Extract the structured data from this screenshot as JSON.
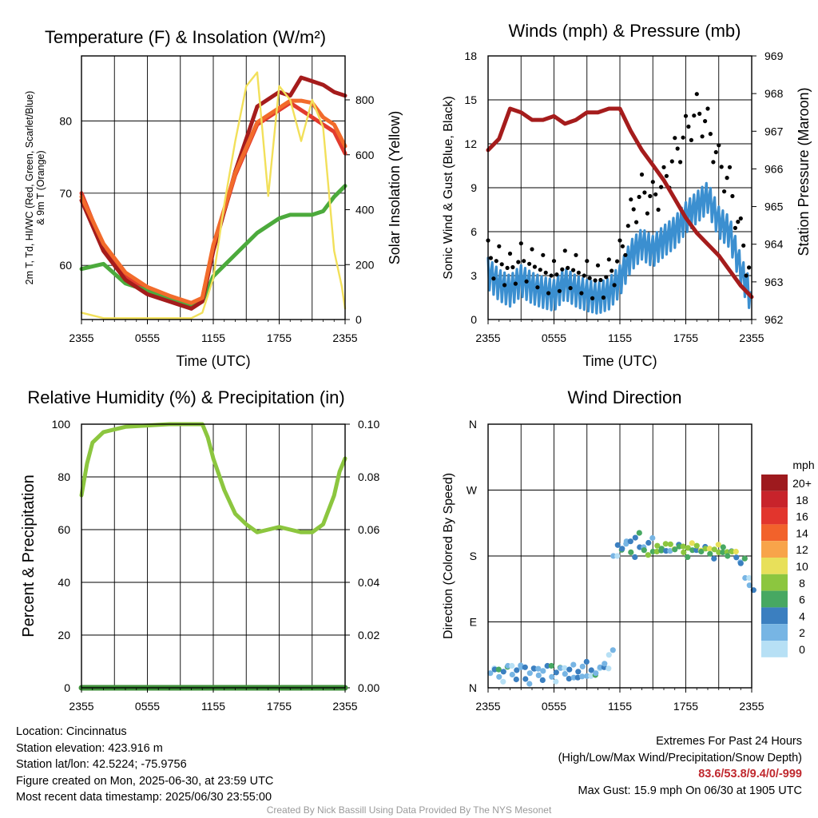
{
  "chart_data": [
    {
      "type": "line",
      "title": "Temperature (F) & Insolation (W/m²)",
      "xlabel": "Time (UTC)",
      "ylabel": "2m T, Td, HI/WC (Red, Green, Scarlet/Blue) & 9m T (Orange)",
      "ylabel_line1": "2m T, Td, HI/WC (Red, Green, Scarlet/Blue)",
      "ylabel_line2": "& 9m T (Orange)",
      "y2label": "Solar Insolation (Yellow)",
      "xticks": [
        "2355",
        "0555",
        "1155",
        "1755",
        "2355"
      ],
      "yticks": [
        60,
        70,
        80
      ],
      "y2ticks": [
        0,
        200,
        400,
        600,
        800
      ],
      "ylim": [
        52.5,
        89
      ],
      "y2lim": [
        0,
        960
      ],
      "x_hours": [
        0,
        2,
        4,
        6,
        8,
        10,
        11,
        12,
        14,
        16,
        18,
        19,
        20,
        21,
        22,
        23,
        24
      ],
      "series": [
        {
          "name": "2m T",
          "color": "#e23b2e",
          "values": [
            70,
            62.5,
            58.5,
            56.5,
            55.5,
            54.5,
            55.5,
            62.5,
            72.5,
            79.5,
            81.5,
            82.5,
            81.5,
            80.5,
            79.5,
            78.5,
            75.5
          ]
        },
        {
          "name": "Td",
          "color": "#4caa3c",
          "values": [
            59.5,
            60.2,
            57.5,
            56.5,
            55.5,
            54.5,
            55,
            58.5,
            61.5,
            64.5,
            66.5,
            67,
            67,
            67,
            67.5,
            69.5,
            71
          ]
        },
        {
          "name": "HI/WC",
          "color": "#a51c1c",
          "values": [
            69,
            62,
            58,
            56,
            55,
            54,
            55,
            62,
            73,
            82,
            84,
            83.5,
            86,
            85.5,
            85,
            84,
            83.5
          ]
        },
        {
          "name": "9m T",
          "color": "#f26b2b",
          "values": [
            69.5,
            63,
            59,
            57,
            55.8,
            54.8,
            55.5,
            62.8,
            72.8,
            79.8,
            81.8,
            82.8,
            82.8,
            82.5,
            80.5,
            79.5,
            76.5
          ]
        },
        {
          "name": "Solar Insolation",
          "color": "#f2e05a",
          "axis": "y2",
          "x": [
            0,
            2,
            4,
            6,
            8,
            10,
            11,
            12,
            13,
            14,
            15,
            16,
            17,
            18,
            19,
            20,
            21,
            22,
            23,
            23.7,
            24
          ],
          "values": [
            25,
            5,
            5,
            5,
            5,
            5,
            25,
            150,
            420,
            650,
            850,
            900,
            450,
            850,
            800,
            650,
            800,
            700,
            250,
            120,
            40
          ]
        }
      ]
    },
    {
      "type": "line",
      "title": "Winds (mph) & Pressure (mb)",
      "xlabel": "Time (UTC)",
      "ylabel": "Sonic Wind & Gust (Blue, Black)",
      "y2label": "Station Pressure (Maroon)",
      "xticks": [
        "2355",
        "0555",
        "1155",
        "1755",
        "2355"
      ],
      "yticks": [
        0,
        3,
        6,
        9,
        12,
        15,
        18
      ],
      "y2ticks": [
        962,
        963,
        964,
        965,
        966,
        967,
        968,
        969
      ],
      "ylim": [
        0,
        18
      ],
      "y2lim": [
        962,
        969
      ],
      "x_hours": [
        0,
        1,
        2,
        3,
        4,
        5,
        6,
        7,
        8,
        9,
        10,
        11,
        12,
        13,
        14,
        15,
        16,
        17,
        18,
        19,
        20,
        21,
        22,
        23,
        24
      ],
      "series": [
        {
          "name": "Sonic Wind",
          "color": "#3b8fd0",
          "values": [
            3,
            2.2,
            1.8,
            2.5,
            2,
            1.7,
            1.5,
            2.3,
            1.8,
            1.5,
            1.3,
            1.6,
            2.5,
            4.2,
            5,
            4.5,
            5.2,
            5.8,
            6.8,
            7.5,
            8.2,
            6.5,
            5.8,
            3.2,
            1.2
          ]
        },
        {
          "name": "Gust",
          "color": "#000000",
          "values": [
            4,
            3.6,
            3.1,
            3.8,
            3.4,
            3.0,
            2.6,
            3.3,
            3.0,
            2.6,
            2.3,
            2.7,
            4.0,
            6.8,
            8.5,
            8.0,
            9.0,
            11.0,
            12.5,
            14.0,
            13.0,
            10.5,
            9.0,
            5.5,
            2.5
          ]
        },
        {
          "name": "Station Pressure",
          "color": "#a51c1c",
          "axis": "y2",
          "values": [
            966.5,
            966.8,
            967.6,
            967.5,
            967.3,
            967.3,
            967.4,
            967.2,
            967.3,
            967.5,
            967.5,
            967.6,
            967.6,
            967.0,
            966.5,
            966.1,
            965.7,
            965.2,
            964.7,
            964.3,
            964.0,
            963.7,
            963.3,
            962.9,
            962.6
          ]
        }
      ]
    },
    {
      "type": "line",
      "title": "Relative Humidity (%) & Precipitation (in)",
      "ylabel": "Percent & Precipitation",
      "xticks": [
        "2355",
        "0555",
        "1155",
        "1755",
        "2355"
      ],
      "yticks": [
        0,
        20,
        40,
        60,
        80,
        100
      ],
      "y2ticks": [
        "0.00",
        "0.02",
        "0.04",
        "0.06",
        "0.08",
        "0.10"
      ],
      "ylim": [
        0,
        100
      ],
      "y2lim": [
        0,
        0.1
      ],
      "x_hours": [
        0,
        0.5,
        1,
        2,
        3,
        4,
        6,
        8,
        10,
        11,
        11.5,
        12,
        13,
        14,
        15,
        16,
        17,
        18,
        19,
        20,
        21,
        22,
        23,
        23.5,
        24
      ],
      "series": [
        {
          "name": "Relative Humidity",
          "color": "#8cc63f",
          "values": [
            73,
            85,
            93,
            97,
            98,
            99,
            99.5,
            100,
            100,
            100,
            95,
            87,
            75,
            66,
            62,
            59,
            60,
            61,
            60,
            59,
            59,
            62,
            73,
            82,
            87
          ]
        },
        {
          "name": "Precipitation",
          "color": "#3f8f3a",
          "axis": "y2",
          "values": [
            0,
            0,
            0,
            0,
            0,
            0,
            0,
            0,
            0,
            0,
            0,
            0,
            0,
            0,
            0,
            0,
            0,
            0,
            0,
            0,
            0,
            0,
            0,
            0,
            0
          ]
        }
      ]
    },
    {
      "type": "scatter",
      "title": "Wind Direction",
      "ylabel": "Direction (Colored By Speed)",
      "xticks": [
        "2355",
        "0555",
        "1155",
        "1755",
        "2355"
      ],
      "yticks": [
        "N",
        "E",
        "S",
        "W",
        "N"
      ],
      "ylim": [
        0,
        360
      ],
      "legend": {
        "title": "mph",
        "labels": [
          "20+",
          "18",
          "16",
          "14",
          "12",
          "10",
          "8",
          "6",
          "4",
          "2",
          "0"
        ],
        "colors": [
          "#9e1a1e",
          "#c8232b",
          "#e2352d",
          "#f2622b",
          "#f8a44a",
          "#e8e05a",
          "#8cc63f",
          "#47a862",
          "#3b7fc0",
          "#77b5e4",
          "#b7e0f5"
        ],
        "placement": "right"
      },
      "series": [
        {
          "name": "",
          "x_hours": [
            0.2,
            0.6,
            1.0,
            1.4,
            1.8,
            2.2,
            2.6,
            3.0,
            3.4,
            3.8,
            4.2,
            4.6,
            5.0,
            5.4,
            5.8,
            6.2,
            6.6,
            7.0,
            7.4,
            7.8,
            8.2,
            8.6,
            9.0,
            9.4,
            9.8,
            10.2,
            10.6,
            11.0,
            11.4,
            11.8,
            12.2,
            12.6,
            13.0,
            13.4,
            13.8,
            14.2,
            14.6,
            15.0,
            15.4,
            15.8,
            16.2,
            16.6,
            17.0,
            17.4,
            17.8,
            18.2,
            18.6,
            19.0,
            19.4,
            19.8,
            20.2,
            20.6,
            21.0,
            21.4,
            21.8,
            22.2,
            22.6,
            23.0,
            23.4,
            23.8
          ],
          "values": [
            20,
            25,
            15,
            22,
            30,
            18,
            24,
            28,
            12,
            20,
            26,
            17,
            23,
            30,
            15,
            21,
            27,
            19,
            25,
            14,
            22,
            29,
            16,
            24,
            20,
            28,
            33,
            45,
            180,
            195,
            190,
            200,
            185,
            205,
            192,
            188,
            198,
            186,
            194,
            190,
            187,
            196,
            189,
            193,
            185,
            191,
            188,
            194,
            186,
            190,
            183,
            189,
            185,
            192,
            180,
            186,
            178,
            170,
            150,
            140
          ],
          "speeds": [
            1,
            3,
            2,
            4,
            1,
            2,
            3,
            1,
            4,
            2,
            3,
            1,
            2,
            4,
            1,
            3,
            2,
            1,
            3,
            2,
            4,
            1,
            2,
            3,
            1,
            2,
            1,
            0,
            1,
            3,
            4,
            2,
            5,
            4,
            3,
            6,
            4,
            5,
            7,
            6,
            4,
            8,
            6,
            5,
            7,
            8,
            6,
            7,
            5,
            8,
            6,
            7,
            8,
            6,
            5,
            7,
            4,
            3,
            2,
            1
          ]
        }
      ]
    }
  ],
  "info": {
    "location": "Location: Cincinnatus",
    "elevation": "Station elevation: 423.916 m",
    "latlon": "Station lat/lon: 42.5224; -75.9756",
    "created": "Figure created on Mon, 2025-06-30, at 23:59 UTC",
    "recent": "Most recent data timestamp: 2025/06/30 23:55:00"
  },
  "extremes": {
    "title": "Extremes For Past 24 Hours",
    "subtitle": "(High/Low/Max Wind/Precipitation/Snow Depth)",
    "values": "83.6/53.8/9.4/0/-999",
    "max_gust": "Max Gust: 15.9 mph On 06/30 at 1905 UTC",
    "value_color": "#c0282e"
  },
  "credit": "Created By Nick Bassill Using Data Provided By The NYS Mesonet"
}
